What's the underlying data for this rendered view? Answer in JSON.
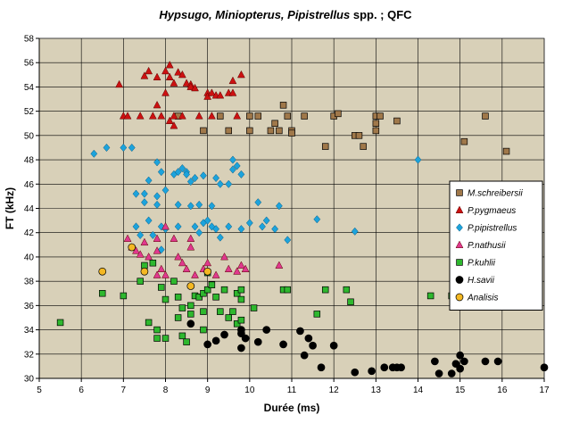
{
  "chart_data": {
    "type": "scatter",
    "title_parts": [
      {
        "text": "Hypsugo, Miniopterus, Pipistrellus",
        "italic": true
      },
      {
        "text": " spp. ; QFC",
        "italic": false
      }
    ],
    "xlabel": "Durée (ms)",
    "ylabel": "FT (kHz)",
    "xlim": [
      5,
      17
    ],
    "ylim": [
      30,
      58
    ],
    "xticks": [
      5,
      6,
      7,
      8,
      9,
      10,
      11,
      12,
      13,
      14,
      15,
      16,
      17
    ],
    "yticks": [
      30,
      32,
      34,
      36,
      38,
      40,
      42,
      44,
      46,
      48,
      50,
      52,
      54,
      56,
      58
    ],
    "grid": true,
    "legend_position": "right",
    "colors": {
      "plot_background": "#d8d0b8",
      "outer_background": "#ffffff",
      "grid": "#000000"
    },
    "series": [
      {
        "name": "M.schreibersii",
        "marker": "square",
        "color": "#a0784a",
        "points": [
          [
            8.3,
            51.6
          ],
          [
            8.9,
            50.4
          ],
          [
            9.3,
            51.6
          ],
          [
            9.5,
            50.4
          ],
          [
            10.0,
            51.6
          ],
          [
            10.0,
            50.4
          ],
          [
            10.2,
            51.6
          ],
          [
            10.5,
            50.4
          ],
          [
            10.6,
            51.0
          ],
          [
            10.7,
            50.4
          ],
          [
            10.8,
            52.5
          ],
          [
            10.9,
            51.6
          ],
          [
            11.0,
            50.4
          ],
          [
            11.0,
            50.2
          ],
          [
            11.3,
            51.6
          ],
          [
            11.8,
            49.1
          ],
          [
            12.0,
            51.6
          ],
          [
            12.1,
            51.8
          ],
          [
            12.5,
            50.0
          ],
          [
            12.6,
            50.0
          ],
          [
            12.7,
            49.1
          ],
          [
            13.0,
            51.6
          ],
          [
            13.0,
            51.0
          ],
          [
            13.0,
            50.4
          ],
          [
            13.1,
            51.6
          ],
          [
            13.5,
            51.2
          ],
          [
            15.1,
            49.5
          ],
          [
            15.6,
            51.6
          ],
          [
            16.1,
            48.7
          ]
        ]
      },
      {
        "name": "P.pygmaeus",
        "marker": "triangle",
        "color": "#cc1111",
        "points": [
          [
            6.9,
            54.2
          ],
          [
            7.0,
            51.6
          ],
          [
            7.1,
            51.6
          ],
          [
            7.4,
            51.6
          ],
          [
            7.5,
            54.9
          ],
          [
            7.6,
            55.3
          ],
          [
            7.7,
            51.6
          ],
          [
            7.8,
            54.8
          ],
          [
            7.8,
            52.5
          ],
          [
            7.9,
            51.6
          ],
          [
            8.0,
            55.3
          ],
          [
            8.1,
            55.8
          ],
          [
            8.0,
            53.5
          ],
          [
            8.1,
            54.8
          ],
          [
            8.2,
            54.3
          ],
          [
            8.2,
            51.6
          ],
          [
            8.3,
            55.2
          ],
          [
            8.4,
            55.0
          ],
          [
            8.4,
            51.6
          ],
          [
            8.5,
            54.3
          ],
          [
            8.6,
            54.2
          ],
          [
            8.6,
            54.0
          ],
          [
            8.7,
            53.9
          ],
          [
            8.8,
            51.6
          ],
          [
            9.0,
            53.5
          ],
          [
            9.0,
            53.2
          ],
          [
            9.1,
            53.5
          ],
          [
            9.1,
            51.6
          ],
          [
            9.2,
            53.3
          ],
          [
            9.3,
            53.3
          ],
          [
            9.5,
            53.5
          ],
          [
            9.6,
            53.5
          ],
          [
            9.6,
            54.5
          ],
          [
            9.7,
            51.6
          ],
          [
            9.8,
            55.0
          ],
          [
            8.1,
            51.2
          ],
          [
            8.2,
            50.8
          ]
        ]
      },
      {
        "name": "P.pipistrellus",
        "marker": "diamond",
        "color": "#1ca3dc",
        "points": [
          [
            6.3,
            48.5
          ],
          [
            6.6,
            49.0
          ],
          [
            7.0,
            49.0
          ],
          [
            7.2,
            49.0
          ],
          [
            7.3,
            45.2
          ],
          [
            7.3,
            42.5
          ],
          [
            7.4,
            41.8
          ],
          [
            7.5,
            45.2
          ],
          [
            7.5,
            44.5
          ],
          [
            7.6,
            46.3
          ],
          [
            7.6,
            43.0
          ],
          [
            7.7,
            41.8
          ],
          [
            7.8,
            47.8
          ],
          [
            7.8,
            45.0
          ],
          [
            7.8,
            44.3
          ],
          [
            7.9,
            47.0
          ],
          [
            7.9,
            42.5
          ],
          [
            7.9,
            40.6
          ],
          [
            8.0,
            45.5
          ],
          [
            8.0,
            42.3
          ],
          [
            8.2,
            46.8
          ],
          [
            8.3,
            47.0
          ],
          [
            8.3,
            44.3
          ],
          [
            8.3,
            42.5
          ],
          [
            8.4,
            47.3
          ],
          [
            8.5,
            47.0
          ],
          [
            8.5,
            46.8
          ],
          [
            8.6,
            46.2
          ],
          [
            8.6,
            44.2
          ],
          [
            8.7,
            46.5
          ],
          [
            8.7,
            42.5
          ],
          [
            8.8,
            44.3
          ],
          [
            8.8,
            42.0
          ],
          [
            8.9,
            46.7
          ],
          [
            8.9,
            42.8
          ],
          [
            9.0,
            43.0
          ],
          [
            9.1,
            44.2
          ],
          [
            9.1,
            42.5
          ],
          [
            9.2,
            46.5
          ],
          [
            9.2,
            42.3
          ],
          [
            9.3,
            46.0
          ],
          [
            9.3,
            41.6
          ],
          [
            9.5,
            46.0
          ],
          [
            9.5,
            42.5
          ],
          [
            9.6,
            47.2
          ],
          [
            9.6,
            48.0
          ],
          [
            9.7,
            47.5
          ],
          [
            9.8,
            46.8
          ],
          [
            9.8,
            42.3
          ],
          [
            10.0,
            42.8
          ],
          [
            10.2,
            44.5
          ],
          [
            10.3,
            42.5
          ],
          [
            10.4,
            43.0
          ],
          [
            10.6,
            42.3
          ],
          [
            10.7,
            44.2
          ],
          [
            10.9,
            41.4
          ],
          [
            11.6,
            43.1
          ],
          [
            12.5,
            42.1
          ],
          [
            14.0,
            48.0
          ]
        ]
      },
      {
        "name": "P.nathusii",
        "marker": "triangle",
        "color": "#e0388e",
        "points": [
          [
            7.1,
            41.5
          ],
          [
            7.2,
            40.8
          ],
          [
            7.3,
            40.5
          ],
          [
            7.4,
            40.2
          ],
          [
            7.5,
            41.2
          ],
          [
            7.6,
            40.0
          ],
          [
            7.8,
            40.5
          ],
          [
            7.8,
            38.5
          ],
          [
            7.8,
            41.5
          ],
          [
            7.9,
            39.0
          ],
          [
            8.0,
            38.5
          ],
          [
            8.0,
            42.5
          ],
          [
            8.2,
            41.5
          ],
          [
            8.3,
            40.0
          ],
          [
            8.4,
            39.5
          ],
          [
            8.5,
            39.0
          ],
          [
            8.6,
            40.8
          ],
          [
            8.6,
            41.5
          ],
          [
            8.7,
            38.5
          ],
          [
            8.9,
            39.0
          ],
          [
            9.0,
            39.5
          ],
          [
            9.2,
            38.5
          ],
          [
            9.4,
            40.0
          ],
          [
            9.5,
            39.0
          ],
          [
            9.7,
            38.8
          ],
          [
            9.8,
            39.3
          ],
          [
            9.9,
            39.0
          ],
          [
            10.7,
            39.3
          ]
        ]
      },
      {
        "name": "P.kuhlii",
        "marker": "square",
        "color": "#2eb82e",
        "points": [
          [
            5.5,
            34.6
          ],
          [
            6.5,
            37.0
          ],
          [
            7.0,
            36.8
          ],
          [
            7.4,
            38.0
          ],
          [
            7.5,
            39.3
          ],
          [
            7.6,
            34.6
          ],
          [
            7.7,
            39.5
          ],
          [
            7.8,
            34.0
          ],
          [
            7.8,
            33.3
          ],
          [
            7.9,
            37.5
          ],
          [
            8.0,
            33.3
          ],
          [
            8.0,
            36.5
          ],
          [
            8.2,
            38.0
          ],
          [
            8.3,
            35.0
          ],
          [
            8.3,
            36.7
          ],
          [
            8.4,
            35.8
          ],
          [
            8.4,
            33.5
          ],
          [
            8.5,
            33.0
          ],
          [
            8.6,
            36.0
          ],
          [
            8.6,
            35.3
          ],
          [
            8.7,
            36.8
          ],
          [
            8.8,
            36.7
          ],
          [
            8.9,
            37.0
          ],
          [
            8.9,
            35.5
          ],
          [
            8.9,
            34.0
          ],
          [
            9.0,
            37.3
          ],
          [
            9.0,
            38.7
          ],
          [
            9.1,
            37.7
          ],
          [
            9.2,
            36.7
          ],
          [
            9.3,
            35.5
          ],
          [
            9.4,
            37.3
          ],
          [
            9.5,
            35.0
          ],
          [
            9.6,
            35.5
          ],
          [
            9.7,
            37.0
          ],
          [
            9.7,
            34.5
          ],
          [
            9.8,
            36.5
          ],
          [
            9.8,
            34.8
          ],
          [
            9.8,
            37.3
          ],
          [
            10.1,
            35.8
          ],
          [
            10.8,
            37.3
          ],
          [
            10.9,
            37.3
          ],
          [
            11.6,
            35.3
          ],
          [
            11.8,
            37.3
          ],
          [
            12.3,
            37.3
          ],
          [
            12.4,
            36.3
          ],
          [
            14.3,
            36.8
          ],
          [
            14.8,
            36.8
          ]
        ]
      },
      {
        "name": "H.savii",
        "marker": "circle",
        "color": "#000000",
        "points": [
          [
            8.6,
            34.5
          ],
          [
            9.0,
            32.8
          ],
          [
            9.2,
            33.1
          ],
          [
            9.4,
            33.6
          ],
          [
            9.8,
            34.0
          ],
          [
            9.8,
            33.7
          ],
          [
            9.8,
            32.5
          ],
          [
            9.9,
            33.3
          ],
          [
            10.2,
            33.0
          ],
          [
            10.4,
            34.0
          ],
          [
            10.8,
            32.8
          ],
          [
            11.2,
            33.9
          ],
          [
            11.3,
            31.9
          ],
          [
            11.4,
            33.3
          ],
          [
            11.5,
            32.7
          ],
          [
            11.7,
            30.9
          ],
          [
            12.0,
            32.7
          ],
          [
            12.5,
            30.5
          ],
          [
            12.9,
            30.6
          ],
          [
            13.2,
            30.9
          ],
          [
            13.4,
            30.9
          ],
          [
            13.5,
            30.9
          ],
          [
            13.6,
            30.9
          ],
          [
            14.4,
            31.4
          ],
          [
            14.5,
            30.4
          ],
          [
            14.8,
            30.4
          ],
          [
            14.9,
            31.2
          ],
          [
            15.0,
            30.8
          ],
          [
            15.0,
            31.9
          ],
          [
            15.1,
            31.4
          ],
          [
            15.6,
            31.4
          ],
          [
            15.9,
            31.4
          ],
          [
            17.0,
            30.9
          ]
        ]
      },
      {
        "name": "Analisis",
        "marker": "circle",
        "color": "#f4b822",
        "points": [
          [
            6.5,
            38.8
          ],
          [
            7.2,
            40.8
          ],
          [
            7.5,
            38.8
          ],
          [
            8.6,
            37.6
          ],
          [
            9.0,
            38.8
          ]
        ]
      }
    ]
  }
}
